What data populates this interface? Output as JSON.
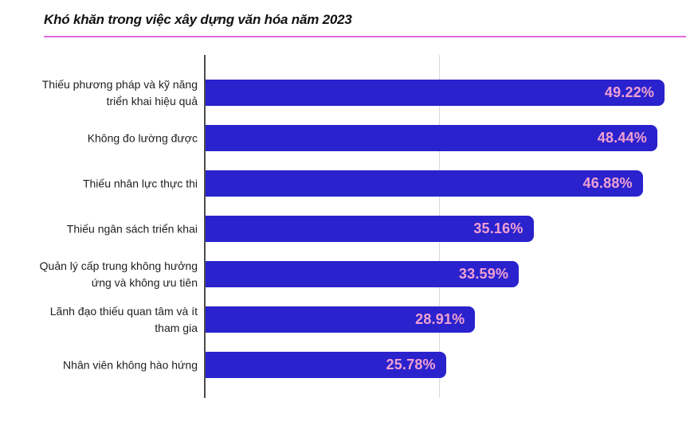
{
  "header": {
    "title": "Khó khăn trong việc xây dựng văn hóa năm 2023"
  },
  "chart_data": {
    "type": "bar",
    "orientation": "horizontal",
    "title": "Khó khăn trong việc xây dựng văn hóa năm 2023",
    "categories": [
      "Thiếu phương pháp và kỹ năng triển khai hiệu quả",
      "Không đo lường được",
      "Thiếu nhân lực thực thi",
      "Thiếu ngân sách triển khai",
      "Quản lý cấp trung không hưởng ứng và không ưu tiên",
      "Lãnh đạo thiếu quan tâm và ít tham gia",
      "Nhân viên không hào hứng"
    ],
    "values": [
      49.22,
      48.44,
      46.88,
      35.16,
      33.59,
      28.91,
      25.78
    ],
    "value_labels": [
      "49.22%",
      "48.44%",
      "46.88%",
      "35.16%",
      "33.59%",
      "28.91%",
      "25.78%"
    ],
    "xlabel": "",
    "ylabel": "",
    "xlim": [
      0,
      51.6
    ],
    "gridlines_x": [
      25
    ],
    "legend": false,
    "grid": "single vertical gridline at 25%, dark y-axis line at 0",
    "colors": {
      "bar": "#2a22cd",
      "value_text": "#f0a0d2",
      "axis": "#4d4d4d",
      "gridline": "#d9d9d9",
      "label_text": "#1e1e1e",
      "title_text": "#111111",
      "title_underline": "#e26ae2"
    }
  }
}
